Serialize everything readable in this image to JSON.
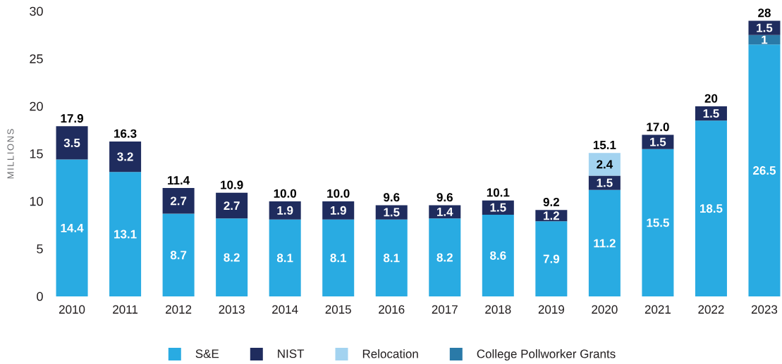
{
  "chart_data": {
    "type": "bar",
    "stacked": true,
    "ylabel": "MILLIONS",
    "categories": [
      "2010",
      "2011",
      "2012",
      "2013",
      "2014",
      "2015",
      "2016",
      "2017",
      "2018",
      "2019",
      "2020",
      "2021",
      "2022",
      "2023"
    ],
    "series": [
      {
        "name": "S&E",
        "color": "#29abe2",
        "values": [
          14.4,
          13.1,
          8.7,
          8.2,
          8.1,
          8.1,
          8.1,
          8.2,
          8.6,
          7.9,
          11.2,
          15.5,
          18.5,
          26.5
        ]
      },
      {
        "name": "College Pollworker Grants",
        "color": "#2a7aa8",
        "values": [
          null,
          null,
          null,
          null,
          null,
          null,
          null,
          null,
          null,
          null,
          null,
          null,
          null,
          1
        ]
      },
      {
        "name": "NIST",
        "color": "#1f2c5e",
        "values": [
          3.5,
          3.2,
          2.7,
          2.7,
          1.9,
          1.9,
          1.5,
          1.4,
          1.5,
          1.2,
          1.5,
          1.5,
          1.5,
          1.5
        ]
      },
      {
        "name": "Relocation",
        "color": "#a3d3f0",
        "values": [
          null,
          null,
          null,
          null,
          null,
          null,
          null,
          null,
          null,
          null,
          2.4,
          null,
          null,
          null
        ]
      }
    ],
    "totals": [
      "17.9",
      "16.3",
      "11.4",
      "10.9",
      "10.0",
      "10.0",
      "9.6",
      "9.6",
      "10.1",
      "9.2",
      "15.1",
      "17.0",
      "20",
      "28"
    ],
    "ylim": [
      0,
      30
    ],
    "yticks": [
      0,
      5,
      10,
      15,
      20,
      25,
      30
    ],
    "data_labels": true,
    "legend": "bottom"
  }
}
